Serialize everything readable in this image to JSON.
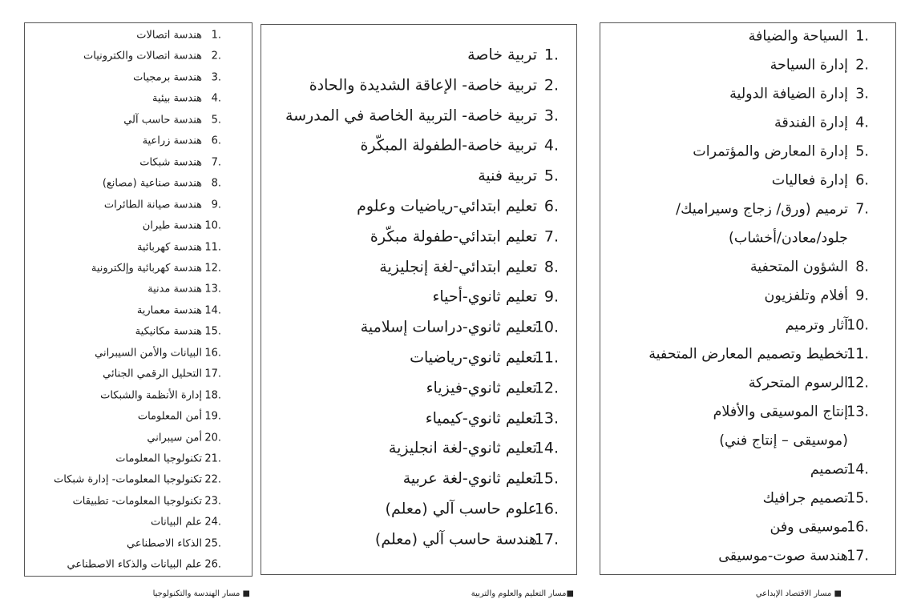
{
  "panels": [
    {
      "caption": "■ مسار الهندسة والتكنولوجيا",
      "items": [
        {
          "number": "1.",
          "lines": [
            "هندسة اتصالات"
          ]
        },
        {
          "number": "2.",
          "lines": [
            "هندسة اتصالات والكترونيات"
          ]
        },
        {
          "number": "3.",
          "lines": [
            "هندسة برمجيات"
          ]
        },
        {
          "number": "4.",
          "lines": [
            "هندسة بيئية"
          ]
        },
        {
          "number": "5.",
          "lines": [
            "هندسة حاسب آلي"
          ]
        },
        {
          "number": "6.",
          "lines": [
            "هندسة زراعية"
          ]
        },
        {
          "number": "7.",
          "lines": [
            "هندسة شبكات"
          ]
        },
        {
          "number": "8.",
          "lines": [
            "هندسة صناعية (مصانع)"
          ]
        },
        {
          "number": "9.",
          "lines": [
            "هندسة صيانة الطائرات"
          ]
        },
        {
          "number": "10.",
          "lines": [
            "هندسة طيران"
          ]
        },
        {
          "number": "11.",
          "lines": [
            "هندسة كهربائية"
          ]
        },
        {
          "number": "12.",
          "lines": [
            "هندسة كهربائية وإلكترونية"
          ]
        },
        {
          "number": "13.",
          "lines": [
            "هندسة مدنية"
          ]
        },
        {
          "number": "14.",
          "lines": [
            "هندسة معمارية"
          ]
        },
        {
          "number": "15.",
          "lines": [
            "هندسة مكانيكية"
          ]
        },
        {
          "number": "16.",
          "lines": [
            "البيانات والأمن السيبراني"
          ]
        },
        {
          "number": "17.",
          "lines": [
            "التحليل الرقمي الجنائي"
          ]
        },
        {
          "number": "18.",
          "lines": [
            "إدارة الأنظمة والشبكات"
          ]
        },
        {
          "number": "19.",
          "lines": [
            "أمن المعلومات"
          ]
        },
        {
          "number": "20.",
          "lines": [
            "أمن سيبراني"
          ]
        },
        {
          "number": "21.",
          "lines": [
            "تكنولوجيا المعلومات"
          ]
        },
        {
          "number": "22.",
          "lines": [
            "تكنولوجيا المعلومات- إدارة شبكات"
          ]
        },
        {
          "number": "23.",
          "lines": [
            "تكنولوجيا المعلومات- تطبيقات"
          ]
        },
        {
          "number": "24.",
          "lines": [
            "علم البيانات"
          ]
        },
        {
          "number": "25.",
          "lines": [
            "الذكاء الاصطناعي"
          ]
        },
        {
          "number": "26.",
          "lines": [
            "علم البيانات والذكاء الاصطناعي"
          ]
        }
      ]
    },
    {
      "caption": "■مسار التعليم والعلوم والتربية",
      "items": [
        {
          "number": "1.",
          "lines": [
            "تربية خاصة"
          ]
        },
        {
          "number": "2.",
          "lines": [
            "تربية خاصة- الإعاقة الشديدة والحادة"
          ]
        },
        {
          "number": "3.",
          "lines": [
            "تربية خاصة- التربية الخاصة في المدرسة"
          ]
        },
        {
          "number": "4.",
          "lines": [
            "تربية خاصة-الطفولة المبكّرة"
          ]
        },
        {
          "number": "5.",
          "lines": [
            "تربية فنية"
          ]
        },
        {
          "number": "6.",
          "lines": [
            "تعليم ابتدائي-رياضيات وعلوم"
          ]
        },
        {
          "number": "7.",
          "lines": [
            "تعليم ابتدائي-طفولة مبكّرة"
          ]
        },
        {
          "number": "8.",
          "lines": [
            "تعليم ابتدائي-لغة إنجليزية"
          ]
        },
        {
          "number": "9.",
          "lines": [
            "تعليم ثانوي-أحياء"
          ]
        },
        {
          "number": "10.",
          "lines": [
            "تعليم ثانوي-دراسات إسلامية"
          ]
        },
        {
          "number": "11.",
          "lines": [
            "تعليم ثانوي-رياضيات"
          ]
        },
        {
          "number": "12.",
          "lines": [
            "تعليم ثانوي-فيزياء"
          ]
        },
        {
          "number": "13.",
          "lines": [
            "تعليم ثانوي-كيمياء"
          ]
        },
        {
          "number": "14.",
          "lines": [
            "تعليم ثانوي-لغة انجليزية"
          ]
        },
        {
          "number": "15.",
          "lines": [
            "تعليم ثانوي-لغة عربية"
          ]
        },
        {
          "number": "16.",
          "lines": [
            "علوم حاسب آلي (معلم)"
          ]
        },
        {
          "number": "17.",
          "lines": [
            "هندسة حاسب آلي (معلم)"
          ]
        }
      ]
    },
    {
      "caption": "■ مسار الاقتصاد الإبداعي",
      "items": [
        {
          "number": "1.",
          "lines": [
            "السياحة والضيافة"
          ]
        },
        {
          "number": "2.",
          "lines": [
            "إدارة السياحة"
          ]
        },
        {
          "number": "3.",
          "lines": [
            "إدارة الضيافة الدولية"
          ]
        },
        {
          "number": "4.",
          "lines": [
            "إدارة الفندقة"
          ]
        },
        {
          "number": "5.",
          "lines": [
            "إدارة المعارض والمؤتمرات"
          ]
        },
        {
          "number": "6.",
          "lines": [
            "إدارة فعاليات"
          ]
        },
        {
          "number": "7.",
          "lines": [
            "ترميم (ورق/ زجاج وسيراميك/",
            "جلود/معادن/أخشاب)"
          ]
        },
        {
          "number": "8.",
          "lines": [
            "الشؤون المتحفية"
          ]
        },
        {
          "number": "9.",
          "lines": [
            "أفلام وتلفزيون"
          ]
        },
        {
          "number": "10.",
          "lines": [
            "آثار وترميم"
          ]
        },
        {
          "number": "11.",
          "lines": [
            "تخطيط وتصميم المعارض المتحفية"
          ]
        },
        {
          "number": "12.",
          "lines": [
            "الرسوم المتحركة"
          ]
        },
        {
          "number": "13.",
          "lines": [
            "إنتاج الموسيقى والأفلام",
            "(موسيقى – إنتاج فني)"
          ]
        },
        {
          "number": "14.",
          "lines": [
            "تصميم"
          ]
        },
        {
          "number": "15.",
          "lines": [
            "تصميم جرافيك"
          ]
        },
        {
          "number": "16.",
          "lines": [
            "موسيقى وفن"
          ]
        },
        {
          "number": "17.",
          "lines": [
            "هندسة صوت-موسيقى"
          ]
        }
      ]
    }
  ]
}
